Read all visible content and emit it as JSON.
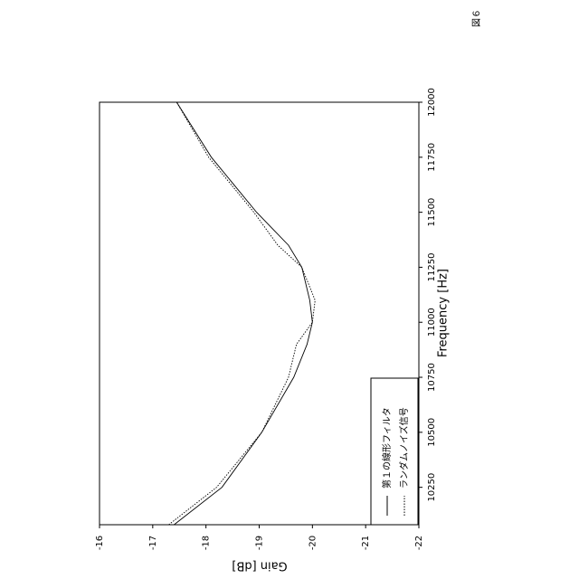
{
  "figure_label": "図６",
  "chart_data": {
    "type": "line",
    "xlabel": "Frequency [Hz]",
    "ylabel": "Gain [dB]",
    "x": [
      10080,
      10250,
      10500,
      10750,
      10900,
      11000,
      11100,
      11250,
      11350,
      11500,
      11750,
      12000
    ],
    "series": [
      {
        "name": "第１の線形フィルタ",
        "color": "#000000",
        "style": "solid",
        "values": [
          -17.4,
          -18.3,
          -19.05,
          -19.65,
          -19.9,
          -20.0,
          -19.95,
          -19.8,
          -19.55,
          -18.95,
          -18.1,
          -17.45
        ]
      },
      {
        "name": "ランダムノイズ信号",
        "color": "#000000",
        "style": "dotted",
        "values": [
          -17.3,
          -18.2,
          -19.05,
          -19.55,
          -19.7,
          -20.0,
          -20.05,
          -19.8,
          -19.35,
          -18.9,
          -18.05,
          -17.45
        ]
      }
    ],
    "xlim": [
      10080,
      12000
    ],
    "xticks": [
      10250,
      10500,
      10750,
      11000,
      11250,
      11500,
      11750,
      12000
    ],
    "ylim": [
      -22,
      -16
    ],
    "yticks": [
      -22,
      -21,
      -20,
      -19,
      -18,
      -17,
      -16
    ],
    "legend": "lower left",
    "grid": false
  }
}
